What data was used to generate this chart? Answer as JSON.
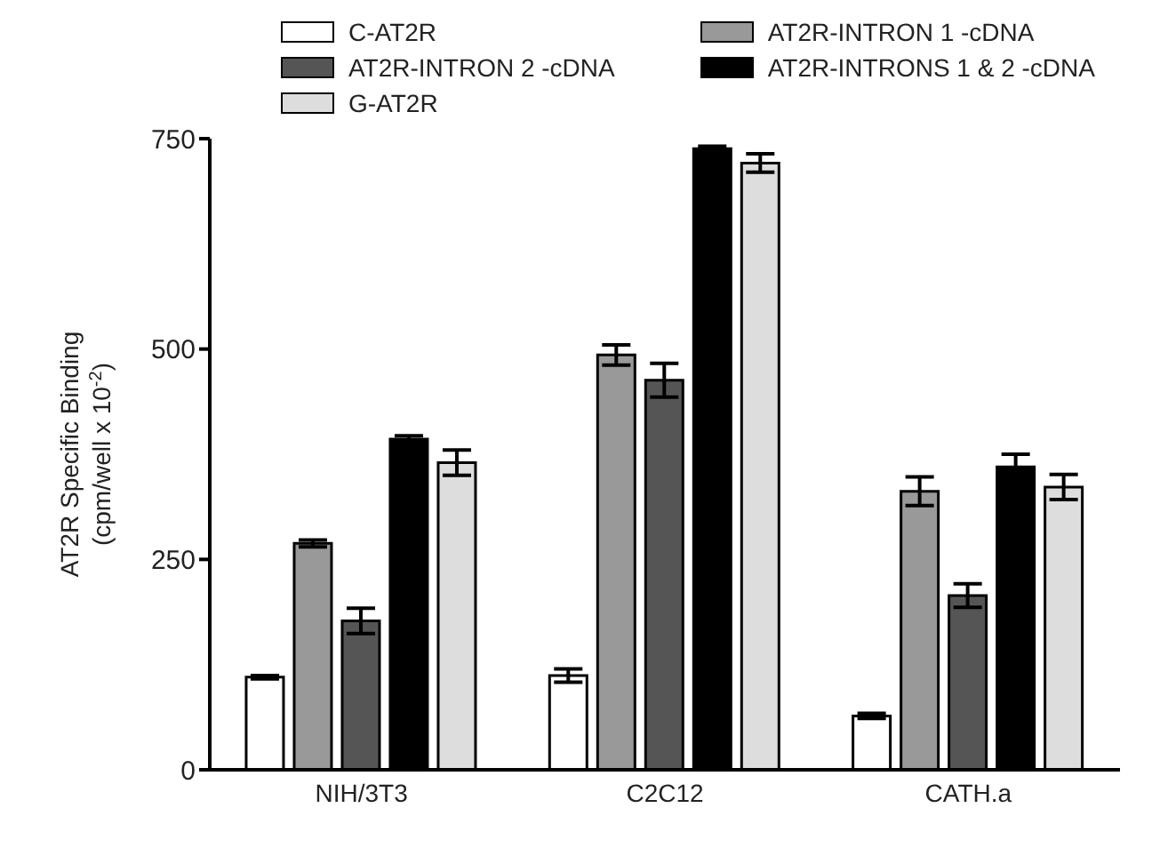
{
  "chart_data": {
    "type": "bar",
    "ylabel": "AT2R Specific Binding\n(cpm/well x 10$^{-2}$)",
    "categories": [
      "NIH/3T3",
      "C2C12",
      "CATH.a"
    ],
    "series": [
      {
        "name": "C-AT2R",
        "color": "#ffffff",
        "values": [
          110,
          112,
          64
        ],
        "errors": [
          2,
          8,
          3
        ]
      },
      {
        "name": "AT2R-INTRON 1 -cDNA",
        "color": "#999999",
        "values": [
          269,
          493,
          331
        ],
        "errors": [
          4,
          12,
          17
        ]
      },
      {
        "name": "AT2R-INTRON 2 -cDNA",
        "color": "#555555",
        "values": [
          177,
          463,
          207
        ],
        "errors": [
          15,
          20,
          14
        ]
      },
      {
        "name": "AT2R-INTRONS 1 & 2 -cDNA",
        "color": "#000000",
        "values": [
          393,
          738,
          360
        ],
        "errors": [
          4,
          3,
          15
        ]
      },
      {
        "name": "G-AT2R",
        "color": "#dddddd",
        "values": [
          365,
          721,
          336
        ],
        "errors": [
          15,
          11,
          15
        ]
      }
    ],
    "ylim": [
      0,
      750
    ],
    "yticks": [
      0,
      250,
      500,
      750
    ],
    "legend": "top"
  }
}
